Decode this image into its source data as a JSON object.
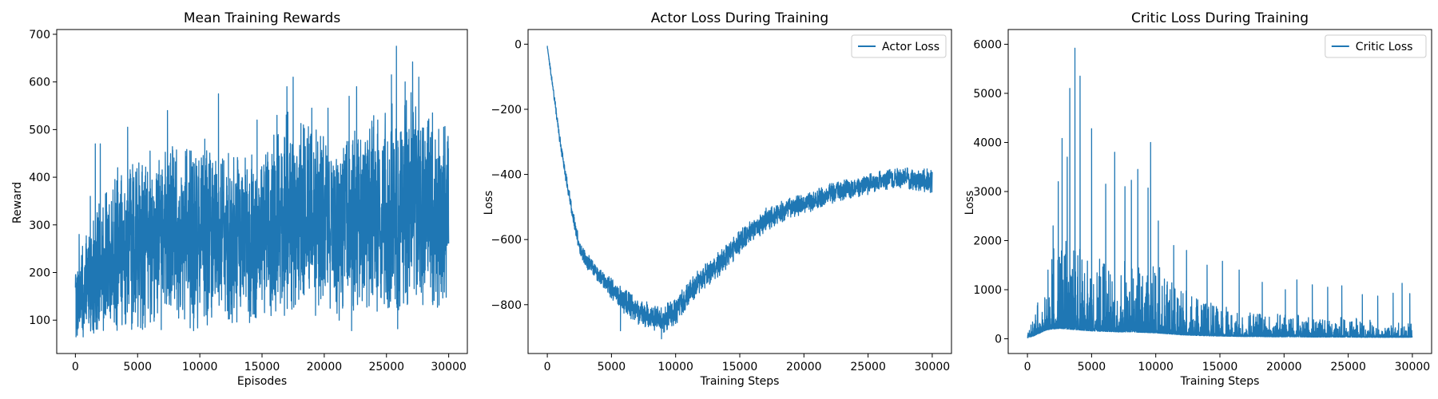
{
  "colors": {
    "series": "#1f77b4",
    "axes": "#000000",
    "background": "#ffffff"
  },
  "chart_data": [
    {
      "type": "line",
      "title": "Mean Training Rewards",
      "xlabel": "Episodes",
      "ylabel": "Reward",
      "xlim": [
        -1500,
        31500
      ],
      "ylim": [
        30,
        710
      ],
      "xticks": [
        0,
        5000,
        10000,
        15000,
        20000,
        25000,
        30000
      ],
      "yticks": [
        100,
        200,
        300,
        400,
        500,
        600,
        700
      ],
      "grid": false,
      "legend": null,
      "series": [
        {
          "color": "#1f77b4",
          "x": [
            0,
            1000,
            2000,
            3000,
            4000,
            5000,
            6000,
            7000,
            8000,
            9000,
            10000,
            11000,
            12000,
            13000,
            14000,
            15000,
            16000,
            17000,
            18000,
            19000,
            20000,
            21000,
            22000,
            23000,
            24000,
            25000,
            26000,
            27000,
            28000,
            29000,
            30000
          ],
          "y": [
            150,
            170,
            200,
            230,
            250,
            260,
            270,
            275,
            275,
            270,
            275,
            280,
            275,
            270,
            275,
            285,
            300,
            330,
            320,
            315,
            310,
            300,
            305,
            310,
            320,
            340,
            330,
            360,
            340,
            320,
            330
          ],
          "band": [
            80,
            120,
            150,
            160,
            170,
            180,
            190,
            190,
            190,
            190,
            200,
            190,
            180,
            180,
            180,
            180,
            200,
            210,
            200,
            200,
            190,
            190,
            190,
            200,
            210,
            220,
            220,
            220,
            210,
            200,
            180
          ],
          "peaks": [
            [
              300,
              280
            ],
            [
              1200,
              360
            ],
            [
              1600,
              470
            ],
            [
              2000,
              470
            ],
            [
              3400,
              420
            ],
            [
              4200,
              505
            ],
            [
              5100,
              430
            ],
            [
              6000,
              455
            ],
            [
              7400,
              540
            ],
            [
              9300,
              455
            ],
            [
              10400,
              480
            ],
            [
              11500,
              575
            ],
            [
              12300,
              450
            ],
            [
              14600,
              520
            ],
            [
              16200,
              530
            ],
            [
              17000,
              590
            ],
            [
              17500,
              610
            ],
            [
              19000,
              545
            ],
            [
              20300,
              545
            ],
            [
              22000,
              570
            ],
            [
              22600,
              590
            ],
            [
              24300,
              520
            ],
            [
              25400,
              615
            ],
            [
              25800,
              675
            ],
            [
              26500,
              600
            ],
            [
              27100,
              642
            ],
            [
              27600,
              610
            ],
            [
              28700,
              535
            ],
            [
              29600,
              505
            ]
          ],
          "troughs": [
            [
              50,
              65
            ],
            [
              600,
              80
            ],
            [
              2100,
              120
            ],
            [
              3300,
              90
            ],
            [
              5600,
              85
            ],
            [
              6900,
              80
            ],
            [
              9500,
              78
            ],
            [
              10600,
              90
            ],
            [
              12600,
              95
            ],
            [
              14000,
              95
            ],
            [
              16800,
              110
            ],
            [
              19300,
              110
            ],
            [
              21200,
              100
            ],
            [
              22200,
              78
            ],
            [
              23600,
              130
            ],
            [
              25900,
              82
            ],
            [
              27700,
              170
            ],
            [
              29400,
              160
            ]
          ]
        }
      ]
    },
    {
      "type": "line",
      "title": "Actor Loss During Training",
      "xlabel": "Training Steps",
      "ylabel": "Loss",
      "xlim": [
        -1500,
        31500
      ],
      "ylim": [
        -950,
        45
      ],
      "xticks": [
        0,
        5000,
        10000,
        15000,
        20000,
        25000,
        30000
      ],
      "yticks": [
        0,
        -200,
        -400,
        -600,
        -800
      ],
      "grid": false,
      "legend": {
        "position": "upper right",
        "entries": [
          "Actor Loss"
        ]
      },
      "series": [
        {
          "name": "Actor Loss",
          "color": "#1f77b4",
          "x": [
            0,
            500,
            1000,
            1500,
            2000,
            2500,
            3000,
            4000,
            5000,
            6000,
            7000,
            8000,
            9000,
            10000,
            11000,
            12000,
            13000,
            14000,
            15000,
            16000,
            17000,
            18000,
            19000,
            20000,
            21000,
            22000,
            23000,
            24000,
            25000,
            26000,
            27000,
            28000,
            29000,
            30000
          ],
          "y": [
            -10,
            -150,
            -300,
            -420,
            -530,
            -620,
            -660,
            -710,
            -750,
            -790,
            -820,
            -835,
            -845,
            -820,
            -770,
            -720,
            -690,
            -650,
            -610,
            -570,
            -540,
            -520,
            -500,
            -490,
            -475,
            -460,
            -450,
            -440,
            -430,
            -420,
            -415,
            -410,
            -420,
            -420
          ],
          "band": [
            5,
            12,
            15,
            18,
            20,
            22,
            25,
            28,
            32,
            38,
            40,
            40,
            42,
            42,
            40,
            38,
            38,
            38,
            38,
            36,
            36,
            34,
            34,
            32,
            32,
            32,
            32,
            32,
            32,
            32,
            32,
            32,
            36,
            40
          ],
          "peaks": [],
          "troughs": [
            [
              5700,
              -880
            ],
            [
              8900,
              -905
            ]
          ]
        }
      ]
    },
    {
      "type": "line",
      "title": "Critic Loss During Training",
      "xlabel": "Training Steps",
      "ylabel": "Loss",
      "xlim": [
        -1500,
        31500
      ],
      "ylim": [
        -300,
        6300
      ],
      "xticks": [
        0,
        5000,
        10000,
        15000,
        20000,
        25000,
        30000
      ],
      "yticks": [
        0,
        1000,
        2000,
        3000,
        4000,
        5000,
        6000
      ],
      "grid": false,
      "legend": {
        "position": "upper right",
        "entries": [
          "Critic Loss"
        ]
      },
      "series": [
        {
          "name": "Critic Loss",
          "color": "#1f77b4",
          "x": [
            0,
            500,
            1000,
            1500,
            2000,
            2500,
            3000,
            3500,
            4000,
            5000,
            6000,
            7000,
            8000,
            9000,
            10000,
            11000,
            12000,
            13000,
            14000,
            15000,
            16000,
            17000,
            18000,
            19000,
            20000,
            21000,
            22000,
            23000,
            24000,
            25000,
            26000,
            27000,
            28000,
            29000,
            30000
          ],
          "y": [
            20,
            60,
            120,
            180,
            200,
            210,
            200,
            190,
            180,
            160,
            150,
            140,
            140,
            130,
            120,
            100,
            80,
            70,
            60,
            55,
            50,
            45,
            45,
            40,
            40,
            40,
            35,
            35,
            35,
            35,
            30,
            30,
            30,
            30,
            30
          ],
          "band": [
            150,
            600,
            1200,
            1500,
            1700,
            1900,
            2000,
            2000,
            1900,
            1700,
            1500,
            1500,
            1500,
            1500,
            1400,
            1200,
            1000,
            900,
            800,
            700,
            600,
            550,
            500,
            500,
            450,
            450,
            420,
            400,
            400,
            400,
            380,
            360,
            360,
            350,
            350
          ],
          "peaks": [
            [
              1600,
              1400
            ],
            [
              2000,
              2300
            ],
            [
              2400,
              3200
            ],
            [
              2700,
              4080
            ],
            [
              3100,
              3700
            ],
            [
              3300,
              5100
            ],
            [
              3700,
              5920
            ],
            [
              4100,
              5350
            ],
            [
              5000,
              4280
            ],
            [
              6100,
              3150
            ],
            [
              6800,
              3800
            ],
            [
              7600,
              3100
            ],
            [
              8100,
              3230
            ],
            [
              8600,
              3450
            ],
            [
              9400,
              3070
            ],
            [
              9600,
              4000
            ],
            [
              10200,
              2400
            ],
            [
              11400,
              1900
            ],
            [
              12400,
              1800
            ],
            [
              14000,
              1500
            ],
            [
              15200,
              1580
            ],
            [
              16500,
              1400
            ],
            [
              18300,
              1150
            ],
            [
              20100,
              1000
            ],
            [
              21000,
              1200
            ],
            [
              22200,
              1100
            ],
            [
              23400,
              1050
            ],
            [
              24500,
              1080
            ],
            [
              26100,
              900
            ],
            [
              27300,
              870
            ],
            [
              28500,
              930
            ],
            [
              29200,
              1130
            ],
            [
              29800,
              920
            ]
          ],
          "troughs": []
        }
      ]
    }
  ]
}
